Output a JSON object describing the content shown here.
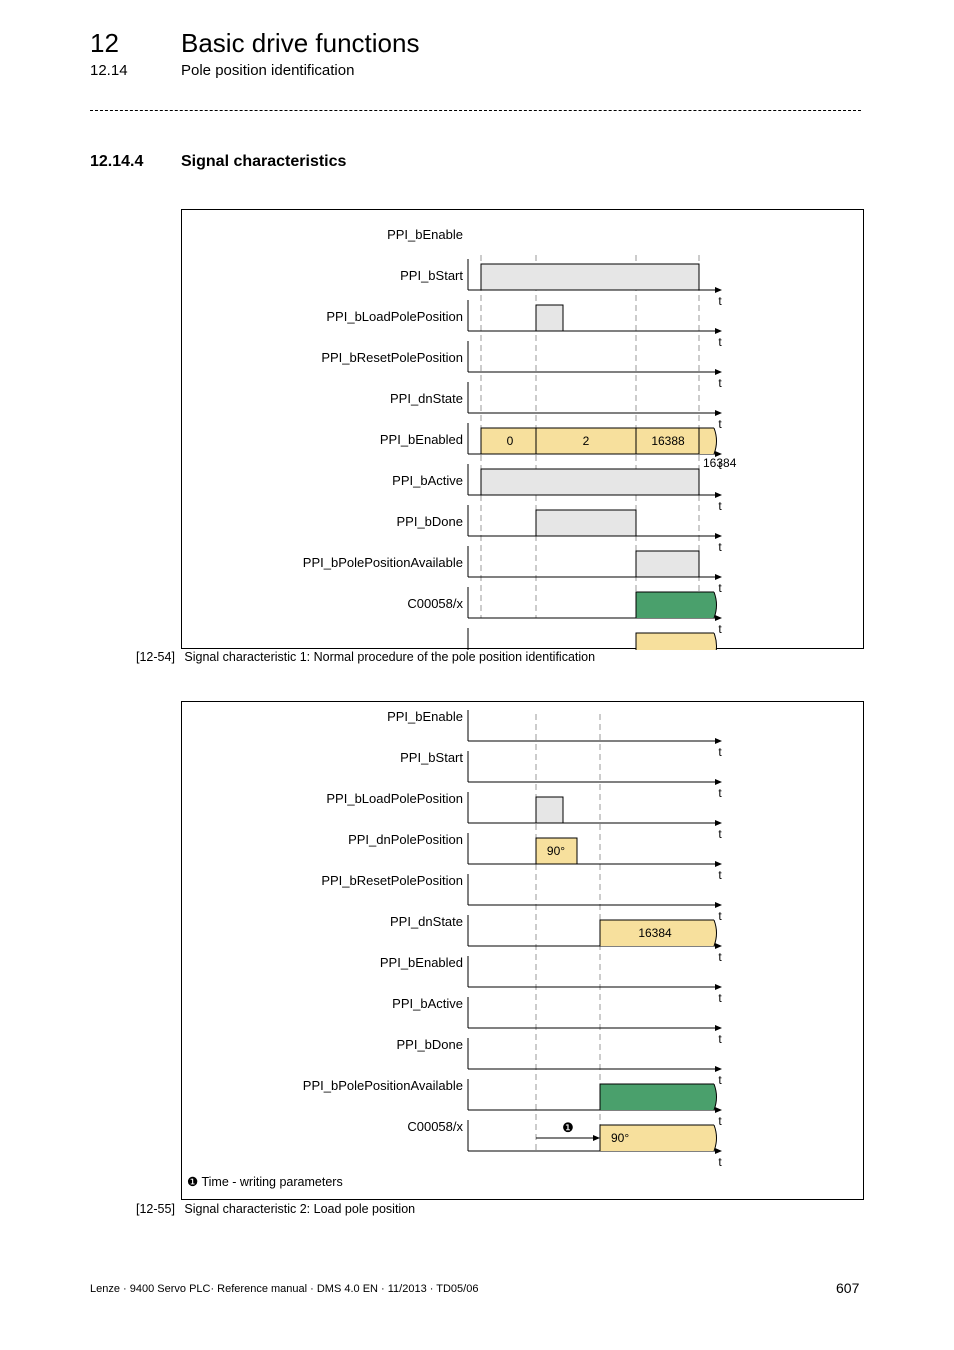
{
  "header": {
    "chapter_number": "12",
    "chapter_title": "Basic drive functions",
    "section_number": "12.14",
    "section_title": "Pole position identification"
  },
  "section": {
    "number": "12.14.4",
    "title": "Signal characteristics"
  },
  "diagram1": {
    "signals": [
      "PPI_bEnable",
      "PPI_bStart",
      "PPI_bLoadPolePosition",
      "PPI_bResetPolePosition",
      "PPI_dnState",
      "PPI_bEnabled",
      "PPI_bActive",
      "PPI_bDone",
      "PPI_bPolePositionAvailable",
      "C00058/x"
    ],
    "state_values": [
      "0",
      "2",
      "16388",
      "16384"
    ],
    "time_axis_label": "t",
    "caption_tag": "[12-54]",
    "caption_text": "Signal characteristic 1: Normal procedure of the pole position identification"
  },
  "diagram2": {
    "signals": [
      "PPI_bEnable",
      "PPI_bStart",
      "PPI_bLoadPolePosition",
      "PPI_dnPolePosition",
      "PPI_bResetPolePosition",
      "PPI_dnState",
      "PPI_bEnabled",
      "PPI_bActive",
      "PPI_bDone",
      "PPI_bPolePositionAvailable",
      "C00058/x"
    ],
    "pole_position_value": "90°",
    "state_value": "16384",
    "c00058_value": "90°",
    "time_axis_label": "t",
    "marker_glyph": "❶",
    "legend_text": "Time - writing parameters",
    "caption_tag": "[12-55]",
    "caption_text": "Signal characteristic 2: Load pole position"
  },
  "colors": {
    "grey_pulse": "#e6e6e6",
    "yellow_value": "#f7e09d",
    "green_available": "#4aa06c"
  },
  "footer": {
    "left": "Lenze · 9400 Servo PLC· Reference manual · DMS 4.0 EN · 11/2013 · TD05/06",
    "page_number": "607"
  }
}
